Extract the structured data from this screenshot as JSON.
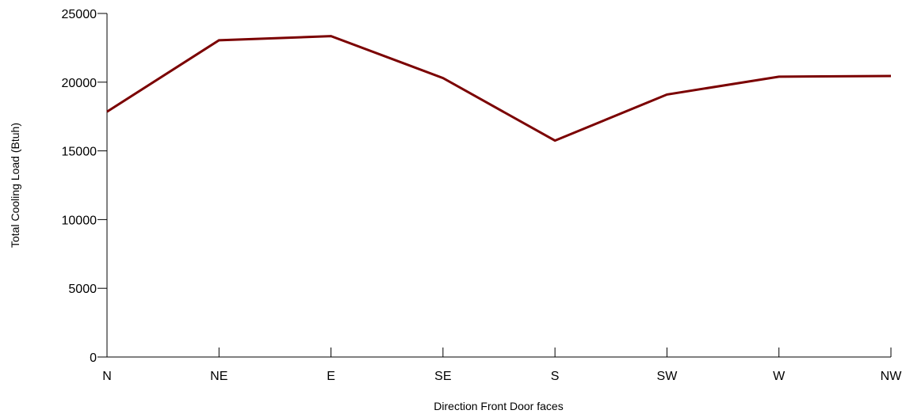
{
  "chart_data": {
    "type": "line",
    "title": "",
    "xlabel": "Direction Front Door faces",
    "ylabel": "Total Cooling Load (Btuh)",
    "categories": [
      "N",
      "NE",
      "E",
      "SE",
      "S",
      "SW",
      "W",
      "NW"
    ],
    "series": [
      {
        "values": [
          17850,
          23050,
          23350,
          20300,
          15750,
          19100,
          20400,
          20450
        ],
        "color": "#7b0000"
      }
    ],
    "ylim": [
      0,
      25000
    ],
    "yticks": [
      0,
      5000,
      10000,
      15000,
      20000,
      25000
    ],
    "grid": false,
    "legend": "none"
  }
}
